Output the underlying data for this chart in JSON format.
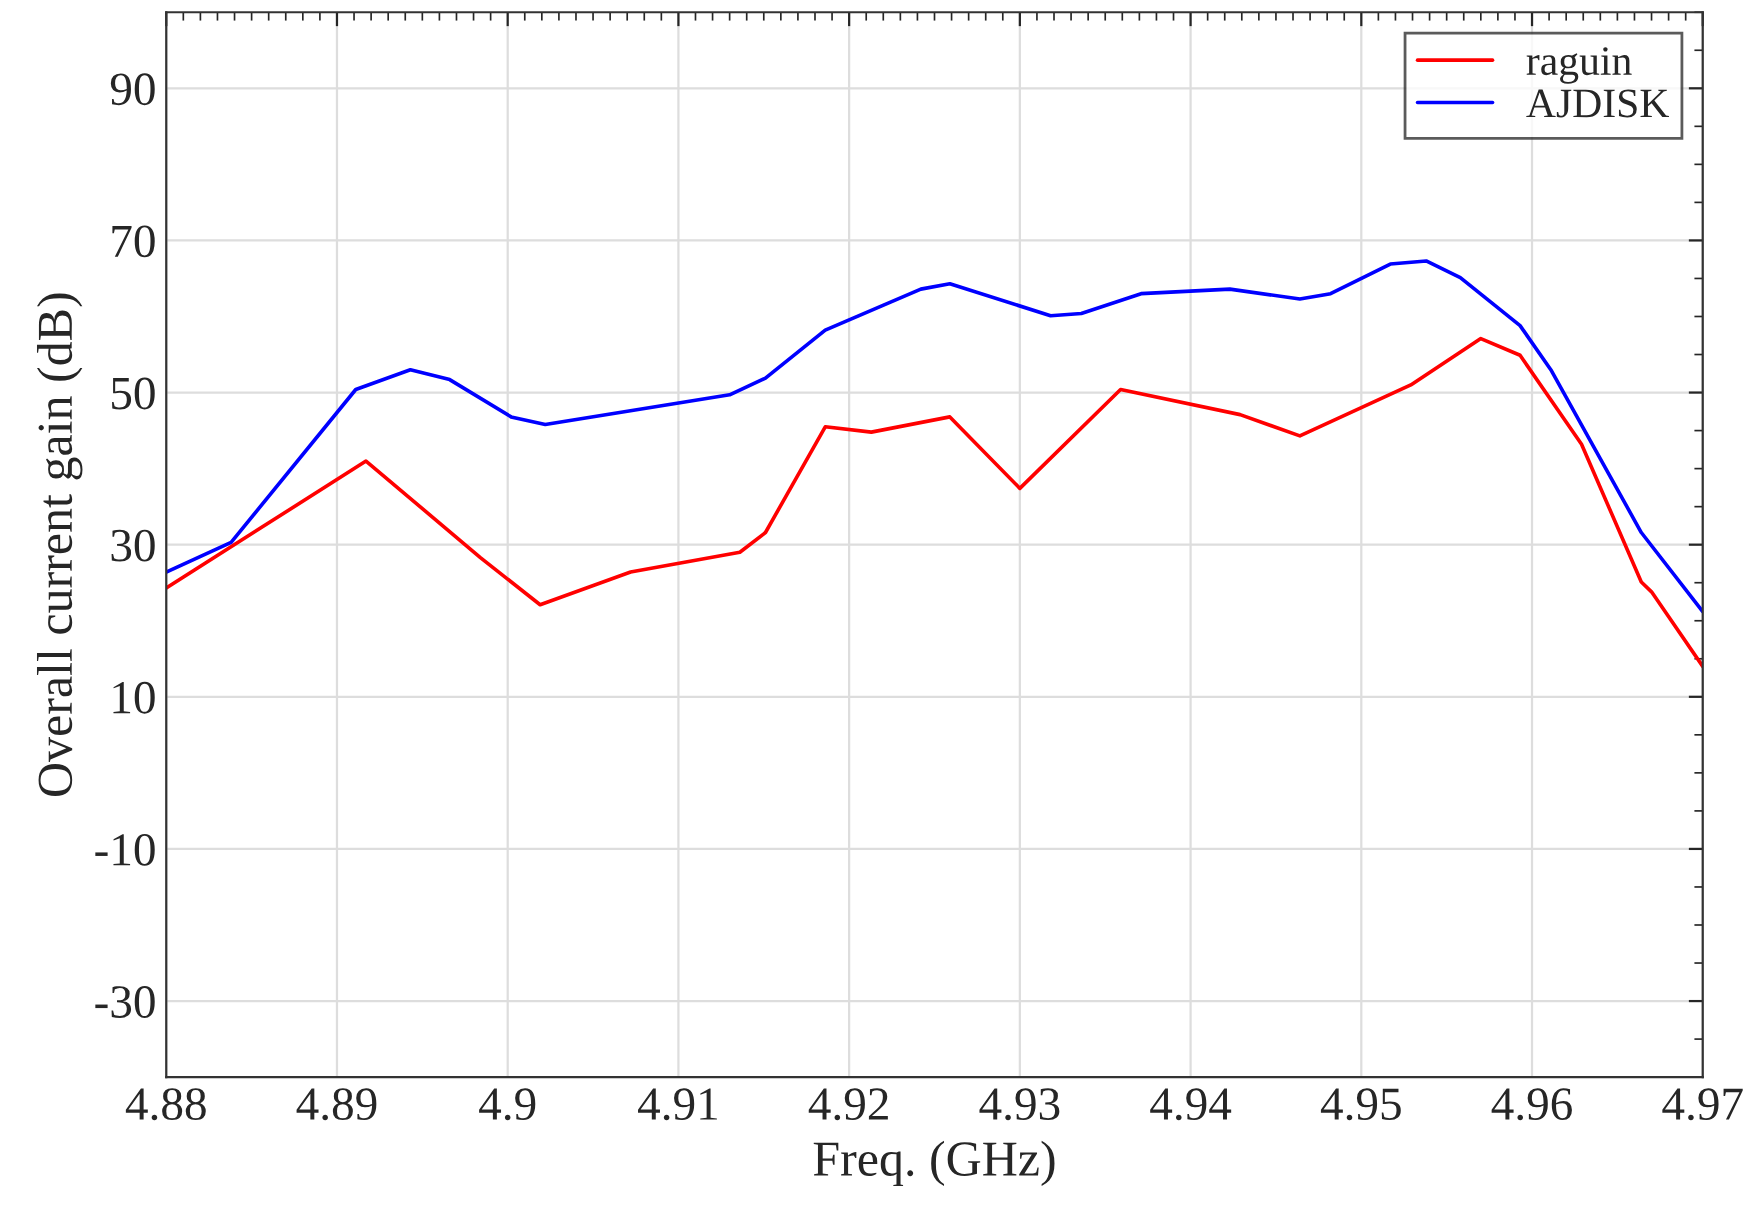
{
  "chart_data": {
    "type": "line",
    "xlabel": "Freq. (GHz)",
    "ylabel": "Overall current gain (dB)",
    "xlim": [
      4.88,
      4.97
    ],
    "xticks": [
      4.88,
      4.89,
      4.9,
      4.91,
      4.92,
      4.93,
      4.94,
      4.95,
      4.96,
      4.97
    ],
    "ylim": [
      -40,
      100
    ],
    "yticks": [
      -30,
      -10,
      10,
      30,
      50,
      70,
      90
    ],
    "grid": true,
    "legend": "top right",
    "line_style": "solid",
    "marker": "none",
    "series": [
      {
        "name": "raguin",
        "color": "#ff0000",
        "x": [
          4.88,
          4.8917,
          4.8984,
          4.9019,
          4.9072,
          4.9136,
          4.9151,
          4.9186,
          4.9213,
          4.9259,
          4.93,
          4.9359,
          4.9429,
          4.9464,
          4.9529,
          4.957,
          4.9593,
          4.9629,
          4.9664,
          4.967,
          4.97
        ],
        "values": [
          24.3,
          41.0,
          28.3,
          22.1,
          26.4,
          29.0,
          31.6,
          45.5,
          44.8,
          46.8,
          37.4,
          50.4,
          47.1,
          44.3,
          51.0,
          57.1,
          54.9,
          43.2,
          25.1,
          23.8,
          14.0
        ]
      },
      {
        "name": "AJDISK",
        "color": "#0000ff",
        "x": [
          4.88,
          4.8838,
          4.8911,
          4.8943,
          4.8966,
          4.9002,
          4.9022,
          4.913,
          4.9151,
          4.9186,
          4.9242,
          4.9259,
          4.9318,
          4.9336,
          4.9371,
          4.9423,
          4.9464,
          4.9482,
          4.9517,
          4.9538,
          4.9558,
          4.9593,
          4.9611,
          4.9664,
          4.97
        ],
        "values": [
          26.4,
          30.3,
          50.4,
          53.0,
          51.7,
          46.8,
          45.8,
          49.7,
          51.9,
          58.2,
          63.6,
          64.3,
          60.1,
          60.4,
          63.0,
          63.6,
          62.3,
          63.0,
          66.9,
          67.3,
          65.1,
          58.8,
          53.0,
          31.6,
          21.2
        ]
      }
    ]
  }
}
